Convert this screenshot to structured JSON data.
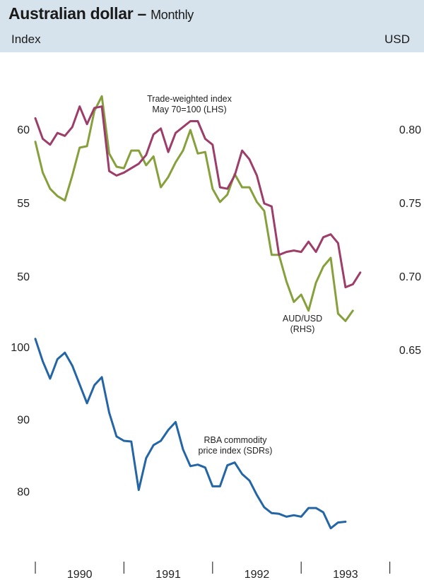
{
  "title": "Australian dollar",
  "subtitle": "Monthly",
  "left_unit": "Index",
  "right_unit": "USD",
  "chart_data": {
    "type": "line",
    "x_ticks": [
      "1990",
      "1991",
      "1992",
      "1993"
    ],
    "series": [
      {
        "name": "Trade-weighted index May 70=100 (LHS)",
        "axis": "left-top",
        "color": "#9c3d6a",
        "x_start": "1990-01",
        "values": [
          60.8,
          59.4,
          59.0,
          59.8,
          59.6,
          60.2,
          61.6,
          60.4,
          61.5,
          61.6,
          57.2,
          56.9,
          57.1,
          57.4,
          57.7,
          58.3,
          59.7,
          60.1,
          58.5,
          59.8,
          60.2,
          60.6,
          60.6,
          59.4,
          59.0,
          56.1,
          56.0,
          56.9,
          58.6,
          58.0,
          56.9,
          55.0,
          54.8,
          51.5,
          51.7,
          51.8,
          51.7,
          52.4,
          51.7,
          52.7,
          52.9,
          52.3,
          49.3,
          49.5,
          50.3
        ]
      },
      {
        "name": "AUD/USD (RHS)",
        "axis": "right",
        "color": "#86a03c",
        "x_start": "1990-01",
        "values": [
          0.792,
          0.771,
          0.76,
          0.755,
          0.752,
          0.769,
          0.788,
          0.789,
          0.813,
          0.823,
          0.784,
          0.775,
          0.774,
          0.786,
          0.786,
          0.776,
          0.782,
          0.761,
          0.768,
          0.778,
          0.786,
          0.8,
          0.784,
          0.785,
          0.76,
          0.751,
          0.756,
          0.77,
          0.761,
          0.761,
          0.751,
          0.745,
          0.715,
          0.715,
          0.697,
          0.683,
          0.688,
          0.677,
          0.696,
          0.707,
          0.713,
          0.675,
          0.67,
          0.677
        ]
      },
      {
        "name": "RBA commodity price index (SDRs)",
        "axis": "left-bottom",
        "color": "#2465a6",
        "x_start": "1990-01",
        "values": [
          101.2,
          98.1,
          95.7,
          98.4,
          99.3,
          97.5,
          94.9,
          92.3,
          94.8,
          95.9,
          91.0,
          87.7,
          87.1,
          87.0,
          80.3,
          84.7,
          86.5,
          87.1,
          88.6,
          89.7,
          85.9,
          83.6,
          83.8,
          83.4,
          80.8,
          80.8,
          83.7,
          84.1,
          82.5,
          81.6,
          79.6,
          77.9,
          77.1,
          77.0,
          76.6,
          76.8,
          76.6,
          77.8,
          77.8,
          77.2,
          75.0,
          75.8,
          75.9
        ]
      }
    ],
    "left_top_axis": {
      "ticks": [
        "60",
        "55",
        "50"
      ],
      "range": [
        45,
        62.5
      ]
    },
    "right_axis": {
      "ticks": [
        "0.80",
        "0.75",
        "0.70",
        "0.65"
      ],
      "range": [
        0.65,
        0.825
      ]
    },
    "left_bottom_axis": {
      "ticks": [
        "100",
        "90",
        "80"
      ],
      "range": [
        70,
        100.5
      ]
    },
    "annotations": {
      "twi_line1": "Trade-weighted index",
      "twi_line2": "May 70=100 (LHS)",
      "aud_line1": "AUD/USD",
      "aud_line2": "(RHS)",
      "rba_line1": "RBA commodity",
      "rba_line2": "price index (SDRs)"
    }
  }
}
